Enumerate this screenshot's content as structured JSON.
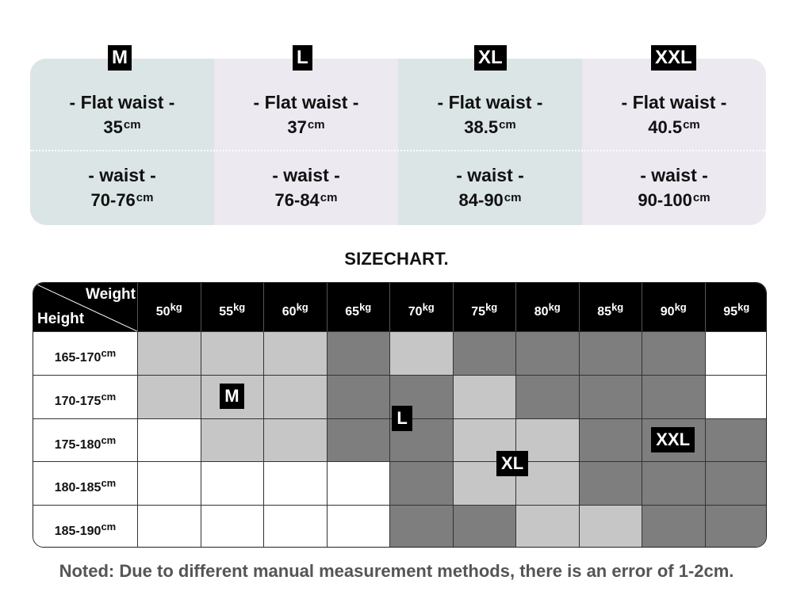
{
  "sizes": [
    {
      "tag": "M",
      "flat_label": "- Flat waist -",
      "flat_value": "35",
      "waist_label": "- waist -",
      "waist_value": "70-76",
      "unit": "cm",
      "bg": "#dbe5e6"
    },
    {
      "tag": "L",
      "flat_label": "- Flat waist -",
      "flat_value": "37",
      "waist_label": "- waist -",
      "waist_value": "76-84",
      "unit": "cm",
      "bg": "#ece9f1"
    },
    {
      "tag": "XL",
      "flat_label": "- Flat waist -",
      "flat_value": "38.5",
      "waist_label": "- waist -",
      "waist_value": "84-90",
      "unit": "cm",
      "bg": "#dbe5e6"
    },
    {
      "tag": "XXL",
      "flat_label": "- Flat waist -",
      "flat_value": "40.5",
      "waist_label": "- waist -",
      "waist_value": "90-100",
      "unit": "cm",
      "bg": "#ece9f1"
    }
  ],
  "chart": {
    "title": "SIZECHART.",
    "corner_weight": "Weight",
    "corner_height": "Height",
    "weight_unit": "kg",
    "height_unit": "cm",
    "weights": [
      "50",
      "55",
      "60",
      "65",
      "70",
      "75",
      "80",
      "85",
      "90",
      "95"
    ],
    "heights": [
      "165-170",
      "170-175",
      "175-180",
      "180-185",
      "185-190"
    ],
    "shade_colors": [
      "#ffffff",
      "#c6c6c6",
      "#7e7e7e"
    ],
    "grid": [
      [
        1,
        1,
        1,
        2,
        1,
        2,
        2,
        2,
        2,
        0
      ],
      [
        1,
        1,
        1,
        2,
        2,
        1,
        2,
        2,
        2,
        0
      ],
      [
        0,
        1,
        1,
        2,
        2,
        1,
        1,
        2,
        2,
        2
      ],
      [
        0,
        0,
        0,
        0,
        2,
        1,
        1,
        2,
        2,
        2
      ],
      [
        0,
        0,
        0,
        0,
        2,
        2,
        1,
        1,
        2,
        2
      ]
    ],
    "zone_labels": [
      {
        "label": "M",
        "row": 1,
        "col": 1.5
      },
      {
        "label": "L",
        "row": 1.5,
        "col": 4.2
      },
      {
        "label": "XL",
        "row": 2.55,
        "col": 5.95
      },
      {
        "label": "XXL",
        "row": 2.0,
        "col": 8.5
      }
    ]
  },
  "note": "Noted: Due to different manual measurement methods, there is an error of 1-2cm."
}
